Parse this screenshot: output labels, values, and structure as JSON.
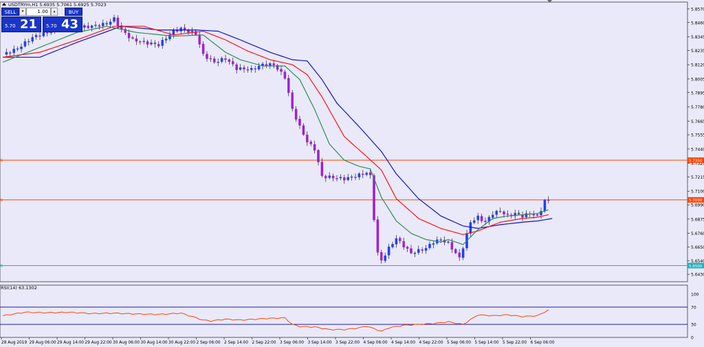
{
  "header": {
    "symbol_line": "USDTRYm,H1  5.6935 5.7061 5.6925 5.7023"
  },
  "trade_panel": {
    "sell_label": "SELL",
    "buy_label": "BUY",
    "lot": "1.00",
    "sell_small": "5.70",
    "sell_big": "21",
    "buy_small": "5.70",
    "buy_big": "43"
  },
  "colors": {
    "background": "#e9e9f9",
    "bull_candle": "#1f3fff",
    "bear_candle": "#a020d0",
    "ma_fast": "#2e8b57",
    "ma_mid": "#ff1010",
    "ma_slow": "#1010d0",
    "hline": "#ff4500",
    "hline_low": "#20b0c0",
    "rsi": "#ff4500",
    "rsi_level": "#00008b"
  },
  "chart_data": {
    "type": "candlestick",
    "title": "USDTRYm,H1",
    "ohlc_header": "5.6935 5.7061 5.6925 5.7023",
    "ylim": [
      5.637,
      5.8625
    ],
    "price_ticks": [
      "5.8570",
      "5.8460",
      "5.8345",
      "5.8235",
      "5.8120",
      "5.8005",
      "5.7895",
      "5.7780",
      "5.7665",
      "5.7555",
      "5.7440",
      "5.7325",
      "5.7215",
      "5.7100",
      "5.6990",
      "5.6875",
      "5.6760",
      "5.6650",
      "5.6540",
      "5.6430"
    ],
    "x_labels": [
      "28 Aug 2019",
      "29 Aug 06:00",
      "29 Aug 14:00",
      "29 Aug 22:00",
      "30 Aug 06:00",
      "30 Aug 14:00",
      "30 Aug 22:00",
      "2 Sep 06:00",
      "2 Sep 14:00",
      "2 Sep 22:00",
      "3 Sep 06:00",
      "3 Sep 14:00",
      "3 Sep 22:00",
      "4 Sep 06:00",
      "4 Sep 14:00",
      "4 Sep 22:00",
      "5 Sep 06:00",
      "5 Sep 14:00",
      "5 Sep 22:00",
      "6 Sep 06:00"
    ],
    "hlines": [
      {
        "value": 5.735,
        "label": "5.7350",
        "color": "#ff4500"
      },
      {
        "value": 5.703,
        "label": "5.7030",
        "color": "#ff4500"
      },
      {
        "value": 5.65,
        "label": "5.6500",
        "color": "#20b0c0"
      }
    ],
    "anchors": [
      {
        "i": 0,
        "p": 5.82
      },
      {
        "i": 4,
        "p": 5.825
      },
      {
        "i": 8,
        "p": 5.834
      },
      {
        "i": 12,
        "p": 5.838
      },
      {
        "i": 16,
        "p": 5.845
      },
      {
        "i": 20,
        "p": 5.842
      },
      {
        "i": 24,
        "p": 5.843
      },
      {
        "i": 28,
        "p": 5.845
      },
      {
        "i": 30,
        "p": 5.849
      },
      {
        "i": 32,
        "p": 5.84
      },
      {
        "i": 35,
        "p": 5.832
      },
      {
        "i": 38,
        "p": 5.83
      },
      {
        "i": 42,
        "p": 5.828
      },
      {
        "i": 46,
        "p": 5.839
      },
      {
        "i": 48,
        "p": 5.841
      },
      {
        "i": 52,
        "p": 5.837
      },
      {
        "i": 54,
        "p": 5.82
      },
      {
        "i": 57,
        "p": 5.814
      },
      {
        "i": 60,
        "p": 5.817
      },
      {
        "i": 63,
        "p": 5.809
      },
      {
        "i": 67,
        "p": 5.808
      },
      {
        "i": 70,
        "p": 5.812
      },
      {
        "i": 73,
        "p": 5.812
      },
      {
        "i": 76,
        "p": 5.802
      },
      {
        "i": 78,
        "p": 5.776
      },
      {
        "i": 80,
        "p": 5.762
      },
      {
        "i": 82,
        "p": 5.75
      },
      {
        "i": 84,
        "p": 5.744
      },
      {
        "i": 86,
        "p": 5.722
      },
      {
        "i": 89,
        "p": 5.721
      },
      {
        "i": 92,
        "p": 5.72
      },
      {
        "i": 95,
        "p": 5.722
      },
      {
        "i": 98,
        "p": 5.725
      },
      {
        "i": 99,
        "p": 5.722
      },
      {
        "i": 100,
        "p": 5.688
      },
      {
        "i": 101,
        "p": 5.66
      },
      {
        "i": 102,
        "p": 5.654
      },
      {
        "i": 104,
        "p": 5.664
      },
      {
        "i": 106,
        "p": 5.672
      },
      {
        "i": 108,
        "p": 5.666
      },
      {
        "i": 110,
        "p": 5.66
      },
      {
        "i": 112,
        "p": 5.662
      },
      {
        "i": 114,
        "p": 5.664
      },
      {
        "i": 116,
        "p": 5.669
      },
      {
        "i": 118,
        "p": 5.671
      },
      {
        "i": 120,
        "p": 5.668
      },
      {
        "i": 122,
        "p": 5.66
      },
      {
        "i": 123,
        "p": 5.656
      },
      {
        "i": 124,
        "p": 5.665
      },
      {
        "i": 126,
        "p": 5.685
      },
      {
        "i": 128,
        "p": 5.689
      },
      {
        "i": 130,
        "p": 5.685
      },
      {
        "i": 132,
        "p": 5.692
      },
      {
        "i": 134,
        "p": 5.694
      },
      {
        "i": 136,
        "p": 5.69
      },
      {
        "i": 138,
        "p": 5.692
      },
      {
        "i": 140,
        "p": 5.69
      },
      {
        "i": 142,
        "p": 5.692
      },
      {
        "i": 144,
        "p": 5.69
      },
      {
        "i": 145,
        "p": 5.695
      },
      {
        "i": 146,
        "p": 5.7023
      }
    ],
    "ma_fast_anchors": [
      {
        "i": 0,
        "p": 5.814
      },
      {
        "i": 10,
        "p": 5.826
      },
      {
        "i": 20,
        "p": 5.838
      },
      {
        "i": 28,
        "p": 5.843
      },
      {
        "i": 36,
        "p": 5.838
      },
      {
        "i": 46,
        "p": 5.835
      },
      {
        "i": 54,
        "p": 5.836
      },
      {
        "i": 60,
        "p": 5.822
      },
      {
        "i": 64,
        "p": 5.816
      },
      {
        "i": 70,
        "p": 5.811
      },
      {
        "i": 76,
        "p": 5.811
      },
      {
        "i": 80,
        "p": 5.8
      },
      {
        "i": 84,
        "p": 5.776
      },
      {
        "i": 88,
        "p": 5.748
      },
      {
        "i": 92,
        "p": 5.735
      },
      {
        "i": 96,
        "p": 5.73
      },
      {
        "i": 99,
        "p": 5.728
      },
      {
        "i": 102,
        "p": 5.705
      },
      {
        "i": 106,
        "p": 5.686
      },
      {
        "i": 110,
        "p": 5.676
      },
      {
        "i": 114,
        "p": 5.671
      },
      {
        "i": 118,
        "p": 5.669
      },
      {
        "i": 120,
        "p": 5.671
      },
      {
        "i": 124,
        "p": 5.667
      },
      {
        "i": 128,
        "p": 5.679
      },
      {
        "i": 132,
        "p": 5.688
      },
      {
        "i": 136,
        "p": 5.69
      },
      {
        "i": 140,
        "p": 5.691
      },
      {
        "i": 144,
        "p": 5.692
      },
      {
        "i": 147,
        "p": 5.695
      }
    ],
    "ma_mid_anchors": [
      {
        "i": 0,
        "p": 5.818
      },
      {
        "i": 10,
        "p": 5.822
      },
      {
        "i": 20,
        "p": 5.832
      },
      {
        "i": 30,
        "p": 5.843
      },
      {
        "i": 38,
        "p": 5.843
      },
      {
        "i": 46,
        "p": 5.836
      },
      {
        "i": 54,
        "p": 5.839
      },
      {
        "i": 60,
        "p": 5.832
      },
      {
        "i": 66,
        "p": 5.823
      },
      {
        "i": 72,
        "p": 5.816
      },
      {
        "i": 78,
        "p": 5.812
      },
      {
        "i": 82,
        "p": 5.804
      },
      {
        "i": 86,
        "p": 5.786
      },
      {
        "i": 92,
        "p": 5.754
      },
      {
        "i": 98,
        "p": 5.738
      },
      {
        "i": 102,
        "p": 5.727
      },
      {
        "i": 106,
        "p": 5.704
      },
      {
        "i": 112,
        "p": 5.688
      },
      {
        "i": 118,
        "p": 5.68
      },
      {
        "i": 124,
        "p": 5.675
      },
      {
        "i": 128,
        "p": 5.678
      },
      {
        "i": 134,
        "p": 5.685
      },
      {
        "i": 140,
        "p": 5.688
      },
      {
        "i": 144,
        "p": 5.689
      },
      {
        "i": 147,
        "p": 5.691
      }
    ],
    "ma_slow_anchors": [
      {
        "i": 0,
        "p": 5.818
      },
      {
        "i": 10,
        "p": 5.818
      },
      {
        "i": 20,
        "p": 5.83
      },
      {
        "i": 32,
        "p": 5.843
      },
      {
        "i": 42,
        "p": 5.84
      },
      {
        "i": 52,
        "p": 5.84
      },
      {
        "i": 58,
        "p": 5.839
      },
      {
        "i": 64,
        "p": 5.832
      },
      {
        "i": 72,
        "p": 5.822
      },
      {
        "i": 78,
        "p": 5.816
      },
      {
        "i": 82,
        "p": 5.815
      },
      {
        "i": 86,
        "p": 5.8
      },
      {
        "i": 90,
        "p": 5.781
      },
      {
        "i": 96,
        "p": 5.762
      },
      {
        "i": 102,
        "p": 5.742
      },
      {
        "i": 106,
        "p": 5.724
      },
      {
        "i": 112,
        "p": 5.704
      },
      {
        "i": 118,
        "p": 5.69
      },
      {
        "i": 124,
        "p": 5.682
      },
      {
        "i": 128,
        "p": 5.68
      },
      {
        "i": 134,
        "p": 5.683
      },
      {
        "i": 140,
        "p": 5.685
      },
      {
        "i": 144,
        "p": 5.686
      },
      {
        "i": 148,
        "p": 5.688
      }
    ],
    "rsi": {
      "label": "RSI(14) 63.1302",
      "ylim": [
        0,
        100
      ],
      "levels": [
        70,
        30
      ],
      "ticks": [
        "100",
        "70",
        "30",
        "0"
      ],
      "anchors": [
        {
          "i": 0,
          "v": 50
        },
        {
          "i": 6,
          "v": 58
        },
        {
          "i": 12,
          "v": 57
        },
        {
          "i": 18,
          "v": 58
        },
        {
          "i": 24,
          "v": 55
        },
        {
          "i": 30,
          "v": 56
        },
        {
          "i": 36,
          "v": 54
        },
        {
          "i": 42,
          "v": 53
        },
        {
          "i": 48,
          "v": 56
        },
        {
          "i": 54,
          "v": 40
        },
        {
          "i": 56,
          "v": 38
        },
        {
          "i": 60,
          "v": 42
        },
        {
          "i": 64,
          "v": 40
        },
        {
          "i": 68,
          "v": 42
        },
        {
          "i": 72,
          "v": 44
        },
        {
          "i": 76,
          "v": 45
        },
        {
          "i": 78,
          "v": 30
        },
        {
          "i": 80,
          "v": 25
        },
        {
          "i": 84,
          "v": 24
        },
        {
          "i": 88,
          "v": 18
        },
        {
          "i": 92,
          "v": 18
        },
        {
          "i": 96,
          "v": 22
        },
        {
          "i": 98,
          "v": 26
        },
        {
          "i": 100,
          "v": 20
        },
        {
          "i": 102,
          "v": 14
        },
        {
          "i": 104,
          "v": 22
        },
        {
          "i": 108,
          "v": 28
        },
        {
          "i": 112,
          "v": 30
        },
        {
          "i": 116,
          "v": 32
        },
        {
          "i": 120,
          "v": 36
        },
        {
          "i": 124,
          "v": 30
        },
        {
          "i": 128,
          "v": 52
        },
        {
          "i": 132,
          "v": 50
        },
        {
          "i": 136,
          "v": 52
        },
        {
          "i": 140,
          "v": 48
        },
        {
          "i": 144,
          "v": 50
        },
        {
          "i": 147,
          "v": 63.13
        }
      ]
    },
    "candle_count": 147
  }
}
